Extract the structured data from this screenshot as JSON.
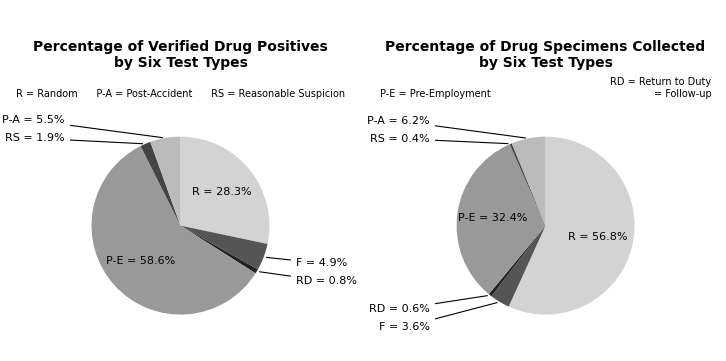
{
  "chart_data": [
    {
      "type": "pie",
      "title": "Percentage of Verified Drug Positives\nby Six Test Types",
      "annotations": [
        "R = Random      P-A = Post-Accident      RS = Reasonable Suspicion"
      ],
      "values": [
        28.3,
        4.9,
        0.8,
        58.6,
        1.9,
        5.5
      ],
      "value_labels": [
        "R = 28.3%",
        "F = 4.9%",
        "RD = 0.8%",
        "P-E = 58.6%",
        "RS = 1.9%",
        "P-A = 5.5%"
      ],
      "colors": [
        "#d3d3d3",
        "#555555",
        "#222222",
        "#999999",
        "#444444",
        "#bbbbbb"
      ],
      "data_labels": true
    },
    {
      "type": "pie",
      "title": "Percentage of Drug Specimens Collected\nby Six Test Types",
      "annotations": [
        "P-E = Pre-Employment",
        "RD = Return to Duty\n= Follow-up"
      ],
      "values": [
        56.8,
        3.6,
        0.6,
        32.4,
        0.4,
        6.2
      ],
      "value_labels": [
        "R = 56.8%",
        "F = 3.6%",
        "RD = 0.6%",
        "P-E = 32.4%",
        "RS = 0.4%",
        "P-A = 6.2%"
      ],
      "colors": [
        "#d3d3d3",
        "#555555",
        "#222222",
        "#999999",
        "#444444",
        "#bbbbbb"
      ],
      "data_labels": true
    }
  ]
}
